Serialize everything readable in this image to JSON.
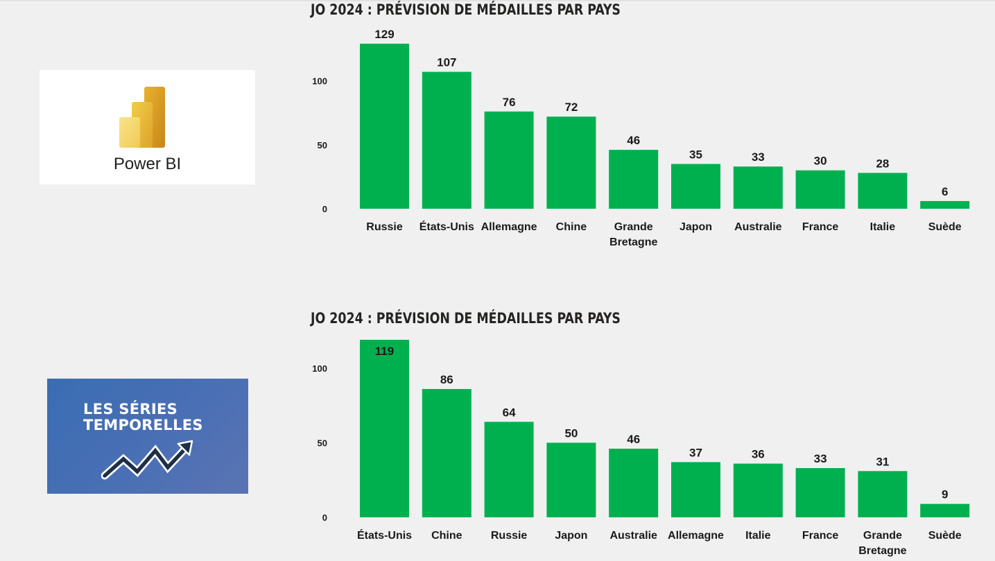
{
  "logos": {
    "powerbi": {
      "label": "Power BI",
      "icon": "power-bi-bar-icon"
    },
    "time_series": {
      "line1": "LES SÉRIES",
      "line2": "TEMPORELLES",
      "icon": "zigzag-up-arrow-icon"
    }
  },
  "colors": {
    "bar": "#00b04f",
    "background": "#f0f0f0",
    "text": "#252423"
  },
  "chart_data": [
    {
      "type": "bar",
      "title": "JO 2024 : PRÉVISION DE MÉDAILLES PAR PAYS",
      "categories": [
        "Russie",
        "États-Unis",
        "Allemagne",
        "Chine",
        "Grande Bretagne",
        "Japon",
        "Australie",
        "France",
        "Italie",
        "Suède"
      ],
      "values": [
        129,
        107,
        76,
        72,
        46,
        35,
        33,
        30,
        28,
        6
      ],
      "yticks": [
        "0",
        "50",
        "100"
      ],
      "ylim": [
        0,
        129
      ],
      "grid": false,
      "data_labels": true
    },
    {
      "type": "bar",
      "title": "JO 2024 : PRÉVISION DE MÉDAILLES PAR PAYS",
      "categories": [
        "États-Unis",
        "Chine",
        "Russie",
        "Japon",
        "Australie",
        "Allemagne",
        "Italie",
        "France",
        "Grande Bretagne",
        "Suède"
      ],
      "values": [
        119,
        86,
        64,
        50,
        46,
        37,
        36,
        33,
        31,
        9
      ],
      "yticks": [
        "0",
        "50",
        "100"
      ],
      "ylim": [
        0,
        119
      ],
      "grid": false,
      "data_labels": true
    }
  ]
}
